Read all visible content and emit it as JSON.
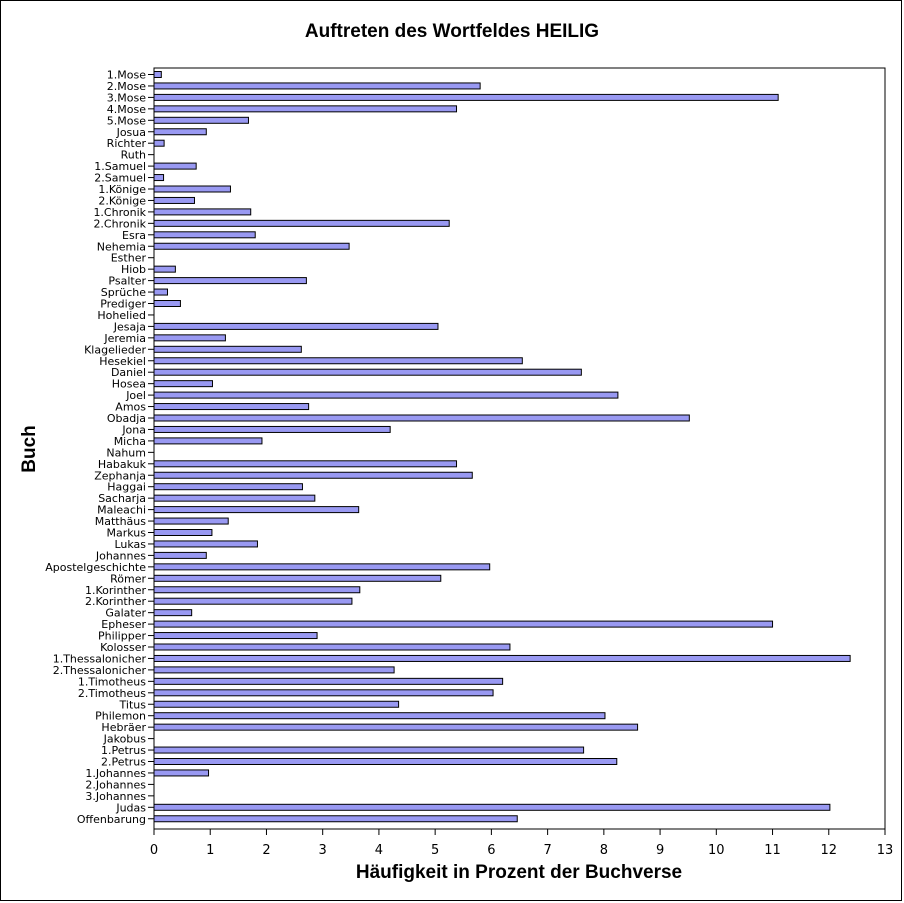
{
  "chart_data": {
    "type": "bar",
    "orientation": "horizontal",
    "title": "Auftreten des Wortfeldes HEILIG",
    "xlabel": "Häufigkeit in Prozent der Buchverse",
    "ylabel": "Buch",
    "xlim": [
      0,
      13
    ],
    "xticks": [
      0,
      1,
      2,
      3,
      4,
      5,
      6,
      7,
      8,
      9,
      10,
      11,
      12,
      13
    ],
    "grid": false,
    "bar_color": "#9999f2",
    "categories": [
      "1.Mose",
      "2.Mose",
      "3.Mose",
      "4.Mose",
      "5.Mose",
      "Josua",
      "Richter",
      "Ruth",
      "1.Samuel",
      "2.Samuel",
      "1.Könige",
      "2.Könige",
      "1.Chronik",
      "2.Chronik",
      "Esra",
      "Nehemia",
      "Esther",
      "Hiob",
      "Psalter",
      "Sprüche",
      "Prediger",
      "Hohelied",
      "Jesaja",
      "Jeremia",
      "Klagelieder",
      "Hesekiel",
      "Daniel",
      "Hosea",
      "Joel",
      "Amos",
      "Obadja",
      "Jona",
      "Micha",
      "Nahum",
      "Habakuk",
      "Zephanja",
      "Haggai",
      "Sacharja",
      "Maleachi",
      "Matthäus",
      "Markus",
      "Lukas",
      "Johannes",
      "Apostelgeschichte",
      "Römer",
      "1.Korinther",
      "2.Korinther",
      "Galater",
      "Epheser",
      "Philipper",
      "Kolosser",
      "1.Thessalonicher",
      "2.Thessalonicher",
      "1.Timotheus",
      "2.Timotheus",
      "Titus",
      "Philemon",
      "Hebräer",
      "Jakobus",
      "1.Petrus",
      "2.Petrus",
      "1.Johannes",
      "2.Johannes",
      "3.Johannes",
      "Judas",
      "Offenbarung"
    ],
    "values": [
      0.13,
      5.8,
      11.1,
      5.38,
      1.68,
      0.93,
      0.18,
      0,
      0.75,
      0.17,
      1.36,
      0.72,
      1.72,
      5.25,
      1.8,
      3.47,
      0,
      0.38,
      2.71,
      0.24,
      0.47,
      0,
      5.05,
      1.27,
      2.62,
      6.55,
      7.6,
      1.04,
      8.25,
      2.75,
      9.52,
      4.2,
      1.92,
      0,
      5.38,
      5.66,
      2.64,
      2.86,
      3.64,
      1.32,
      1.03,
      1.84,
      0.93,
      5.97,
      5.1,
      3.66,
      3.52,
      0.67,
      11.0,
      2.9,
      6.33,
      12.38,
      4.27,
      6.2,
      6.03,
      4.35,
      8.02,
      8.6,
      0,
      7.64,
      8.23,
      0.97,
      0,
      0,
      12.02,
      6.46
    ]
  }
}
